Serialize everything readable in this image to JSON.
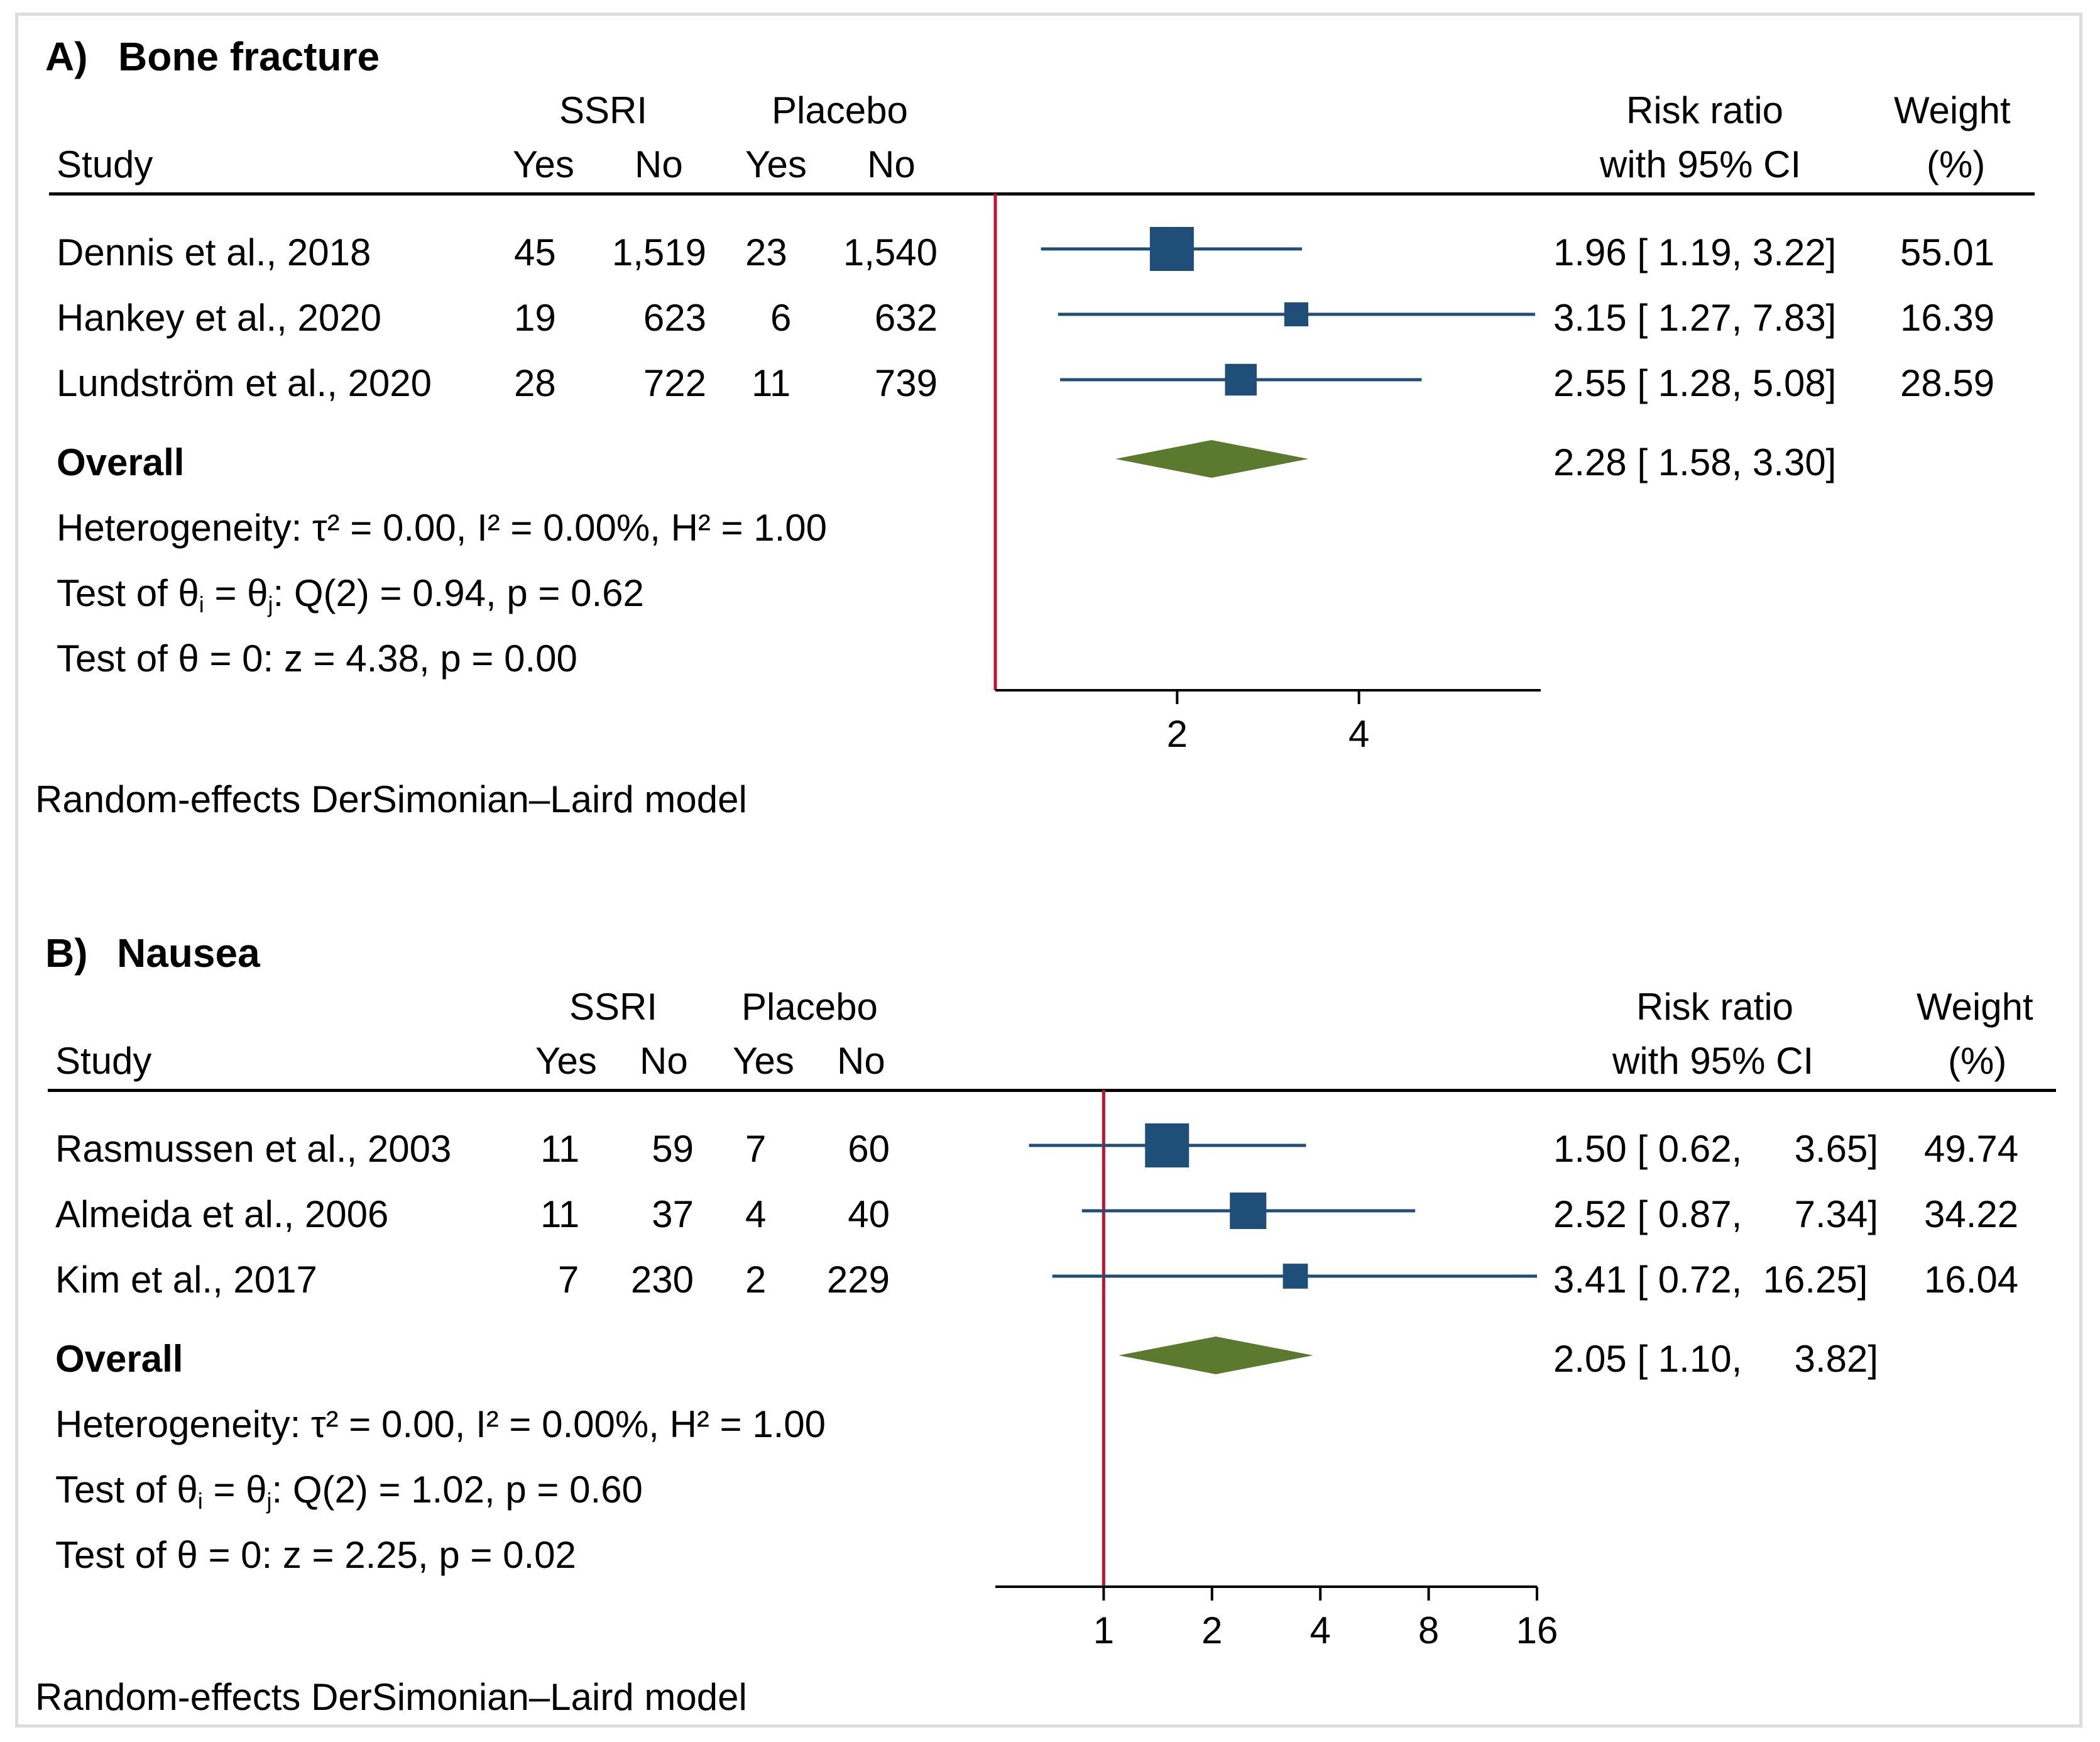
{
  "chart_data": [
    {
      "type": "forest",
      "panel_label": "A)",
      "title": "Bone fracture",
      "columns": {
        "study": "Study",
        "group1": "SSRI",
        "group2": "Placebo",
        "yes": "Yes",
        "no": "No",
        "effect_line1": "Risk ratio",
        "effect_line2": "with 95% CI",
        "weight_line1": "Weight",
        "weight_line2": "(%)"
      },
      "studies": [
        {
          "name": "Dennis et al., 2018",
          "ssri_yes": "45",
          "ssri_no": "1,519",
          "placebo_yes": "23",
          "placebo_no": "1,540",
          "rr": 1.96,
          "lo": 1.19,
          "hi": 3.22,
          "weight": 55.01,
          "ci_text": "1.96 [ 1.19,  3.22]",
          "weight_text": "55.01"
        },
        {
          "name": "Hankey et al., 2020",
          "ssri_yes": "19",
          "ssri_no": "623",
          "placebo_yes": "6",
          "placebo_no": "632",
          "rr": 3.15,
          "lo": 1.27,
          "hi": 7.83,
          "weight": 16.39,
          "ci_text": "3.15 [ 1.27,  7.83]",
          "weight_text": "16.39"
        },
        {
          "name": "Lundström et al., 2020",
          "ssri_yes": "28",
          "ssri_no": "722",
          "placebo_yes": "11",
          "placebo_no": "739",
          "rr": 2.55,
          "lo": 1.28,
          "hi": 5.08,
          "weight": 28.59,
          "ci_text": "2.55 [ 1.28,  5.08]",
          "weight_text": "28.59"
        }
      ],
      "overall": {
        "label": "Overall",
        "rr": 2.28,
        "lo": 1.58,
        "hi": 3.3,
        "ci_text": "2.28 [ 1.58,  3.30]"
      },
      "heterogeneity": "Heterogeneity: τ² = 0.00, I² = 0.00%, H² = 1.00",
      "test_q_prefix": "Test of θ",
      "test_q_sub_i": "i",
      "test_q_mid": " = θ",
      "test_q_sub_j": "j",
      "test_q_suffix": ": Q(2) = 0.94, p = 0.62",
      "test_z": "Test of θ = 0: z = 4.38, p = 0.00",
      "axis": {
        "scale": "log",
        "range": [
          1.0,
          8.0
        ],
        "ticks": [
          2,
          4
        ],
        "tick_labels": [
          "2",
          "4"
        ],
        "null_line": 1
      },
      "model_note": "Random-effects DerSimonian–Laird model"
    },
    {
      "type": "forest",
      "panel_label": "B)",
      "title": "Nausea",
      "columns": {
        "study": "Study",
        "group1": "SSRI",
        "group2": "Placebo",
        "yes": "Yes",
        "no": "No",
        "effect_line1": "Risk ratio",
        "effect_line2": "with 95% CI",
        "weight_line1": "Weight",
        "weight_line2": "(%)"
      },
      "studies": [
        {
          "name": "Rasmussen et al., 2003",
          "ssri_yes": "11",
          "ssri_no": "59",
          "placebo_yes": "7",
          "placebo_no": "60",
          "rr": 1.5,
          "lo": 0.62,
          "hi": 3.65,
          "weight": 49.74,
          "ci_text": "1.50 [ 0.62,     3.65]",
          "weight_text": "49.74"
        },
        {
          "name": "Almeida et al., 2006",
          "ssri_yes": "11",
          "ssri_no": "37",
          "placebo_yes": "4",
          "placebo_no": "40",
          "rr": 2.52,
          "lo": 0.87,
          "hi": 7.34,
          "weight": 34.22,
          "ci_text": "2.52 [ 0.87,     7.34]",
          "weight_text": "34.22"
        },
        {
          "name": "Kim et al., 2017",
          "ssri_yes": "7",
          "ssri_no": "230",
          "placebo_yes": "2",
          "placebo_no": "229",
          "rr": 3.41,
          "lo": 0.72,
          "hi": 16.25,
          "weight": 16.04,
          "ci_text": "3.41 [ 0.72,  16.25]",
          "weight_text": "16.04"
        }
      ],
      "overall": {
        "label": "Overall",
        "rr": 2.05,
        "lo": 1.1,
        "hi": 3.82,
        "ci_text": "2.05 [ 1.10,     3.82]"
      },
      "heterogeneity": "Heterogeneity: τ² = 0.00, I² = 0.00%, H² = 1.00",
      "test_q_prefix": "Test of θ",
      "test_q_sub_i": "i",
      "test_q_mid": " = θ",
      "test_q_sub_j": "j",
      "test_q_suffix": ": Q(2) = 1.02, p = 0.60",
      "test_z": "Test of θ = 0: z = 2.25, p = 0.02",
      "axis": {
        "scale": "log",
        "range": [
          0.5,
          16.0
        ],
        "ticks": [
          1,
          2,
          4,
          8,
          16
        ],
        "tick_labels": [
          "1",
          "2",
          "4",
          "8",
          "16"
        ],
        "null_line": 1
      },
      "model_note": "Random-effects DerSimonian–Laird model"
    }
  ],
  "colors": {
    "study_marker": "#1f4e79",
    "ci_line": "#1f4e79",
    "overall_diamond": "#5b7a2e",
    "null_line": "#c8102e",
    "axis": "#000000",
    "frame": "#dcdcdc"
  }
}
